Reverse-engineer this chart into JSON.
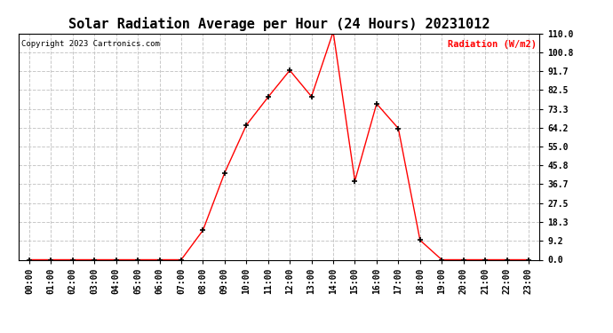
{
  "title": "Solar Radiation Average per Hour (24 Hours) 20231012",
  "copyright": "Copyright 2023 Cartronics.com",
  "ylabel": "Radiation (W/m2)",
  "hours": [
    "00:00",
    "01:00",
    "02:00",
    "03:00",
    "04:00",
    "05:00",
    "06:00",
    "07:00",
    "08:00",
    "09:00",
    "10:00",
    "11:00",
    "12:00",
    "13:00",
    "14:00",
    "15:00",
    "16:00",
    "17:00",
    "18:00",
    "19:00",
    "20:00",
    "21:00",
    "22:00",
    "23:00"
  ],
  "values": [
    0.0,
    0.0,
    0.0,
    0.0,
    0.0,
    0.0,
    0.0,
    0.0,
    14.3,
    42.2,
    65.4,
    79.0,
    92.0,
    79.3,
    110.7,
    38.3,
    75.8,
    63.8,
    9.5,
    0.0,
    0.0,
    0.0,
    0.0,
    0.0
  ],
  "yticks": [
    0.0,
    9.2,
    18.3,
    27.5,
    36.7,
    45.8,
    55.0,
    64.2,
    73.3,
    82.5,
    91.7,
    100.8,
    110.0
  ],
  "ylim": [
    0.0,
    110.0
  ],
  "line_color": "red",
  "marker_color": "black",
  "marker": "+",
  "marker_size": 4,
  "marker_linewidth": 1.2,
  "grid_color": "#c8c8c8",
  "grid_style": "--",
  "bg_color": "white",
  "title_fontsize": 11,
  "tick_fontsize": 7,
  "copyright_fontsize": 6.5,
  "ylabel_color": "red",
  "ylabel_fontsize": 7.5
}
